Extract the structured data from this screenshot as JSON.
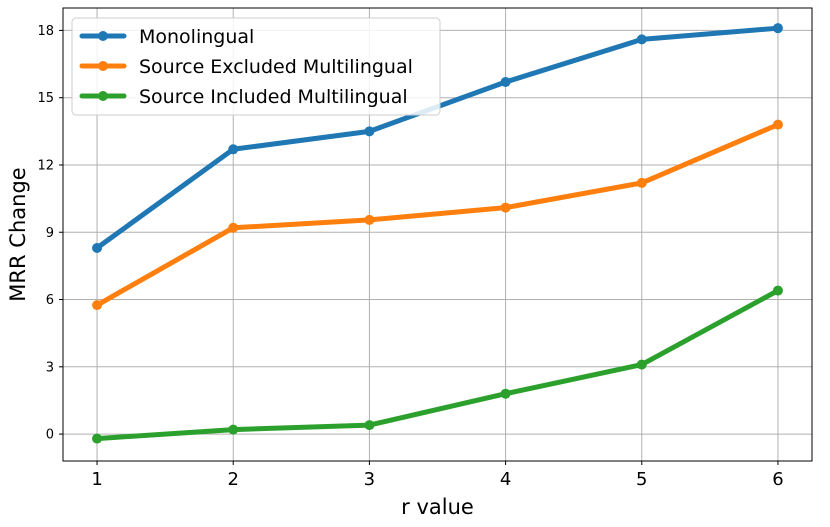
{
  "chart_data": {
    "type": "line",
    "title": "",
    "xlabel": "r value",
    "ylabel": "MRR Change",
    "x": [
      1,
      2,
      3,
      4,
      5,
      6
    ],
    "x_ticks": [
      "1",
      "2",
      "3",
      "4",
      "5",
      "6"
    ],
    "y_ticks": [
      "0",
      "3",
      "6",
      "9",
      "12",
      "15",
      "18"
    ],
    "xlim": [
      0.75,
      6.25
    ],
    "ylim": [
      -1.2,
      19.0
    ],
    "grid": true,
    "legend_position": "top-left",
    "series": [
      {
        "name": "Monolingual",
        "color": "#1f77b4",
        "values": [
          8.3,
          12.7,
          13.5,
          15.7,
          17.6,
          18.1
        ]
      },
      {
        "name": "Source Excluded Multilingual",
        "color": "#ff7f0e",
        "values": [
          5.75,
          9.2,
          9.55,
          10.1,
          11.2,
          13.8
        ]
      },
      {
        "name": "Source Included Multilingual",
        "color": "#2ca02c",
        "values": [
          -0.2,
          0.2,
          0.4,
          1.8,
          3.1,
          6.4
        ]
      }
    ]
  }
}
